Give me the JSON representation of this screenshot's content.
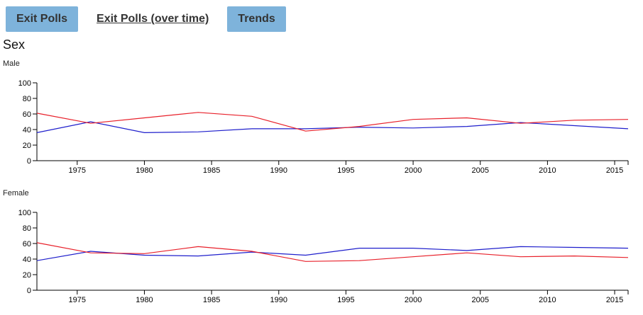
{
  "tabs": [
    {
      "label": "Exit Polls",
      "style": "button"
    },
    {
      "label": "Exit Polls (over time)",
      "style": "link"
    },
    {
      "label": "Trends",
      "style": "button"
    }
  ],
  "section_title": "Sex",
  "colors": {
    "blue": "#1f1fcc",
    "red": "#e8202a",
    "tab_bg": "#7eb3db"
  },
  "chart_data": [
    {
      "type": "line",
      "title": "Male",
      "xlim": [
        1972,
        2016
      ],
      "ylim": [
        0,
        100
      ],
      "x_ticks": [
        1975,
        1980,
        1985,
        1990,
        1995,
        2000,
        2005,
        2010,
        2015
      ],
      "y_ticks": [
        0,
        20,
        40,
        60,
        80,
        100
      ],
      "grid": false,
      "series": [
        {
          "color": "#1f1fcc",
          "x": [
            1972,
            1976,
            1980,
            1984,
            1988,
            1992,
            1996,
            2000,
            2004,
            2008,
            2012,
            2016
          ],
          "y": [
            36,
            50,
            36,
            37,
            41,
            41,
            43,
            42,
            44,
            49,
            45,
            41
          ]
        },
        {
          "color": "#e8202a",
          "x": [
            1972,
            1976,
            1980,
            1984,
            1988,
            1992,
            1996,
            2000,
            2004,
            2008,
            2012,
            2016
          ],
          "y": [
            61,
            48,
            55,
            62,
            57,
            38,
            44,
            53,
            55,
            48,
            52,
            53
          ]
        }
      ]
    },
    {
      "type": "line",
      "title": "Female",
      "xlim": [
        1972,
        2016
      ],
      "ylim": [
        0,
        100
      ],
      "x_ticks": [
        1975,
        1980,
        1985,
        1990,
        1995,
        2000,
        2005,
        2010,
        2015
      ],
      "y_ticks": [
        0,
        20,
        40,
        60,
        80,
        100
      ],
      "grid": false,
      "series": [
        {
          "color": "#1f1fcc",
          "x": [
            1972,
            1976,
            1980,
            1984,
            1988,
            1992,
            1996,
            2000,
            2004,
            2008,
            2012,
            2016
          ],
          "y": [
            38,
            50,
            45,
            44,
            49,
            45,
            54,
            54,
            51,
            56,
            55,
            54
          ]
        },
        {
          "color": "#e8202a",
          "x": [
            1972,
            1976,
            1980,
            1984,
            1988,
            1992,
            1996,
            2000,
            2004,
            2008,
            2012,
            2016
          ],
          "y": [
            61,
            48,
            47,
            56,
            50,
            37,
            38,
            43,
            48,
            43,
            44,
            42
          ]
        }
      ]
    }
  ]
}
